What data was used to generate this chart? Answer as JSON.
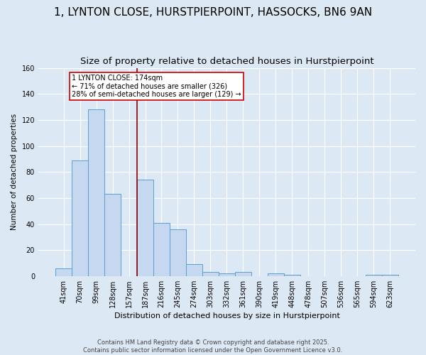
{
  "title1": "1, LYNTON CLOSE, HURSTPIERPOINT, HASSOCKS, BN6 9AN",
  "title2": "Size of property relative to detached houses in Hurstpierpoint",
  "xlabel": "Distribution of detached houses by size in Hurstpierpoint",
  "ylabel": "Number of detached properties",
  "categories": [
    "41sqm",
    "70sqm",
    "99sqm",
    "128sqm",
    "157sqm",
    "187sqm",
    "216sqm",
    "245sqm",
    "274sqm",
    "303sqm",
    "332sqm",
    "361sqm",
    "390sqm",
    "419sqm",
    "448sqm",
    "478sqm",
    "507sqm",
    "536sqm",
    "565sqm",
    "594sqm",
    "623sqm"
  ],
  "values": [
    6,
    89,
    128,
    63,
    0,
    74,
    41,
    36,
    9,
    3,
    2,
    3,
    0,
    2,
    1,
    0,
    0,
    0,
    0,
    1,
    1
  ],
  "bar_color": "#c5d8ef",
  "bar_edge_color": "#5a9fd4",
  "vline_index": 5,
  "vline_color": "#8b0000",
  "annotation_line1": "1 LYNTON CLOSE: 174sqm",
  "annotation_line2": "← 71% of detached houses are smaller (326)",
  "annotation_line3": "28% of semi-detached houses are larger (129) →",
  "footer": "Contains HM Land Registry data © Crown copyright and database right 2025.\nContains public sector information licensed under the Open Government Licence v3.0.",
  "bg_color": "#dde8f5",
  "plot_bg_color": "#dde8f5",
  "ylim": [
    0,
    160
  ],
  "title_fontsize": 11,
  "subtitle_fontsize": 9.5
}
